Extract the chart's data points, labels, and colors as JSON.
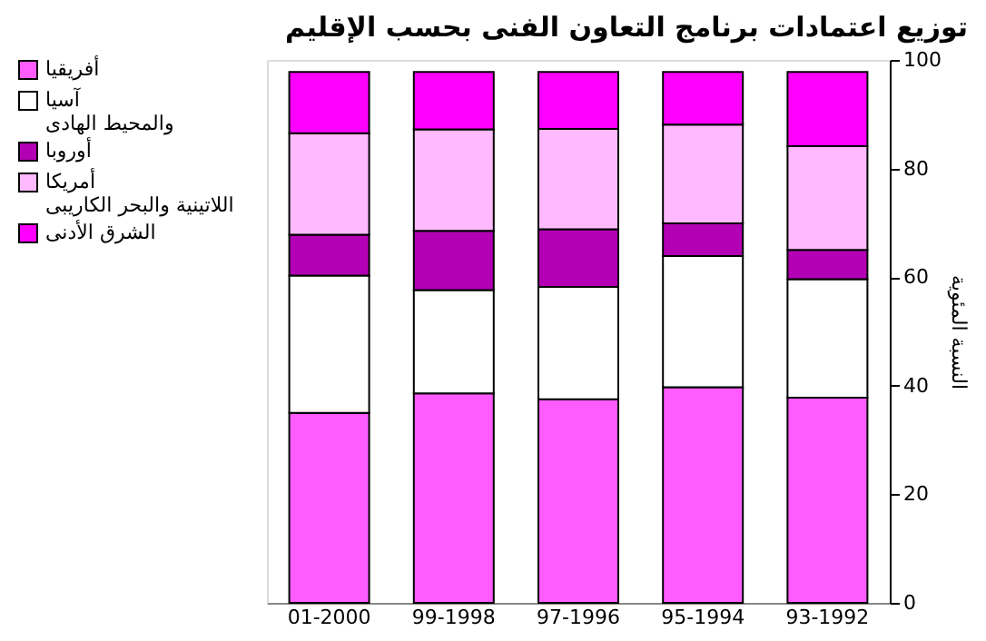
{
  "chart_data": {
    "type": "bar",
    "stacked": true,
    "title": "توزيع اعتمادات برنامج  التعاون الفنى بحسب الإقليم",
    "ylabel": "النسبة المئوية",
    "categories": [
      "01-2000",
      "99-1998",
      "97-1996",
      "95-1994",
      "93-1992"
    ],
    "series": [
      {
        "name": "أفريقيا",
        "color": "#ff5cff",
        "values": [
          35.0,
          38.6,
          37.5,
          39.7,
          37.8
        ]
      },
      {
        "name": "آسيا والمحيط الهادى",
        "color": "#ffffff",
        "values": [
          25.3,
          19.0,
          20.7,
          24.2,
          21.8
        ]
      },
      {
        "name": "أوروبا",
        "color": "#b400b4",
        "values": [
          7.5,
          10.9,
          10.6,
          6.0,
          5.4
        ]
      },
      {
        "name": "أمريكا اللاتينية والبحر الكاريبى",
        "color": "#ffbaff",
        "values": [
          18.7,
          18.7,
          18.5,
          18.2,
          19.1
        ]
      },
      {
        "name": "الشرق الأدنى",
        "color": "#ff00ff",
        "values": [
          11.3,
          10.6,
          10.5,
          9.7,
          13.7
        ]
      }
    ],
    "ylim": [
      0,
      100
    ],
    "yticks": [
      0,
      20,
      40,
      60,
      80,
      100
    ],
    "grid": false,
    "legend": "left"
  }
}
